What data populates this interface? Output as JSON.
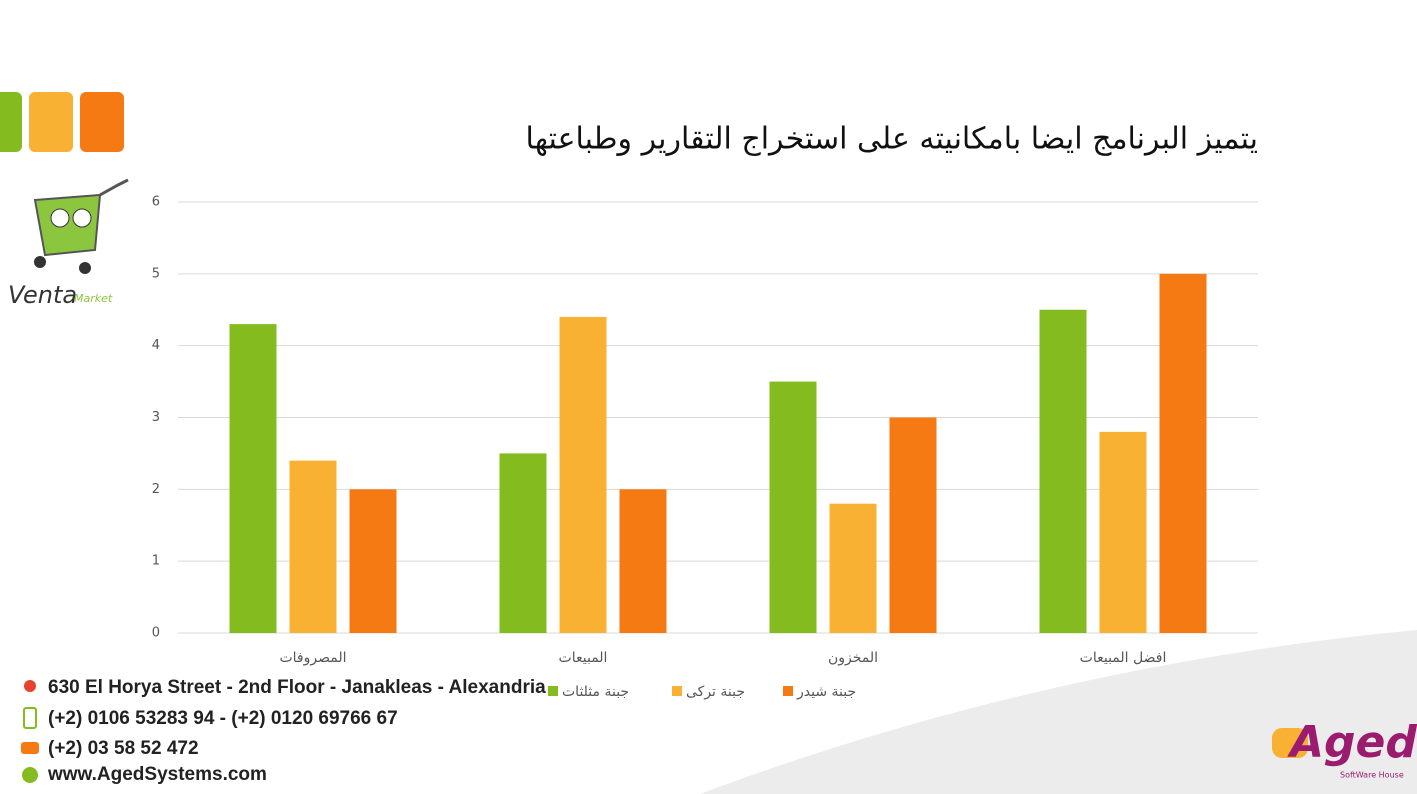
{
  "chart_data": {
    "type": "bar",
    "title": "يتميز البرنامج ايضا بامكانيته على استخراج التقارير وطباعتها",
    "categories": [
      "المصروفات",
      "المبيعات",
      "المخزون",
      "افضل المبيعات"
    ],
    "series": [
      {
        "name": "جبنة مثلثات",
        "color": "#84bc1f",
        "values": [
          4.3,
          2.5,
          3.5,
          4.5
        ]
      },
      {
        "name": "جبنة تركى",
        "color": "#f9b133",
        "values": [
          2.4,
          4.4,
          1.8,
          2.8
        ]
      },
      {
        "name": "جبنة شيدر",
        "color": "#f57a14",
        "values": [
          2,
          2,
          3,
          5
        ]
      }
    ],
    "ylim": [
      0,
      6
    ],
    "yticks": [
      0,
      1,
      2,
      3,
      4,
      5,
      6
    ],
    "grid": true,
    "legend": "bottom"
  },
  "logo": {
    "name": "Venta",
    "sub": "Market"
  },
  "company": {
    "name": "Aged",
    "sub": "SoftWare House"
  },
  "contact": {
    "address": "630 El Horya Street - 2nd Floor - Janakleas - Alexandria",
    "mobile": "(+2) 0106 53283 94 - (+2) 0120 69766 67",
    "phone": "(+2) 03 58 52 472",
    "website": "www.AgedSystems.com"
  }
}
